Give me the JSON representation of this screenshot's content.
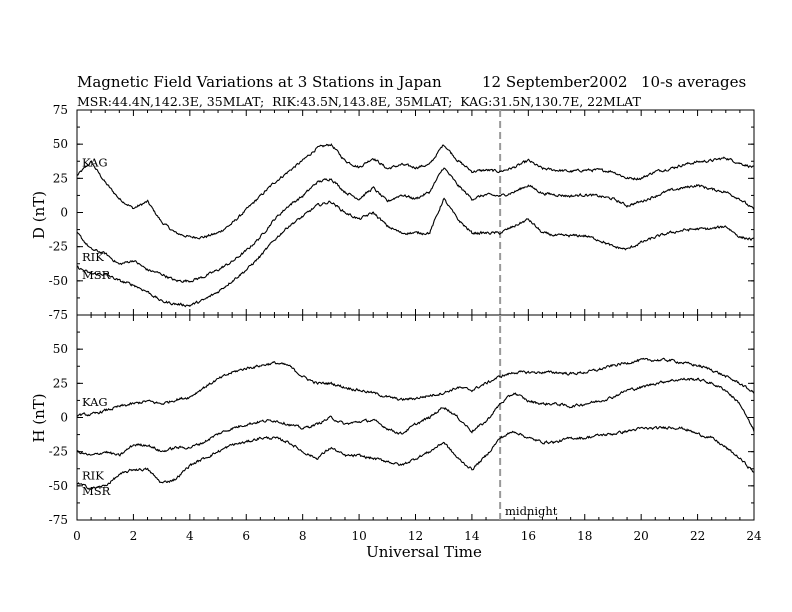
{
  "figure": {
    "title": "Magnetic Field Variations at 3 Stations in Japan",
    "date": "12 September2002",
    "averaging": "10-s averages",
    "stations_line": "MSR:44.4N,142.3E, 35MLAT;  RIK:43.5N,143.8E, 35MLAT;  KAG:31.5N,130.7E, 22MLAT",
    "annotation": "midnight"
  },
  "chart_data": [
    {
      "type": "line",
      "ylabel": "D (nT)",
      "xlabel": "",
      "xlim": [
        0,
        24
      ],
      "ylim": [
        -75,
        75
      ],
      "yticks": [
        -75,
        -50,
        -25,
        0,
        25,
        50,
        75
      ],
      "grid": false,
      "marker_line_x": 15,
      "series": [
        {
          "name": "KAG",
          "x": [
            0,
            0.5,
            1,
            1.5,
            2,
            2.5,
            3,
            3.5,
            4,
            4.5,
            5,
            5.5,
            6,
            6.5,
            7,
            7.5,
            8,
            8.5,
            9,
            9.5,
            10,
            10.5,
            11,
            11.5,
            12,
            12.5,
            13,
            13.5,
            14,
            14.5,
            15,
            15.5,
            16,
            16.5,
            17,
            17.5,
            18,
            18.5,
            19,
            19.5,
            20,
            20.5,
            21,
            21.5,
            22,
            22.5,
            23,
            23.5,
            24
          ],
          "y": [
            27,
            37,
            22,
            10,
            3,
            8,
            -7,
            -15,
            -18,
            -18,
            -15,
            -8,
            2,
            12,
            22,
            30,
            38,
            47,
            50,
            38,
            33,
            40,
            32,
            35,
            33,
            35,
            50,
            38,
            30,
            31,
            30,
            33,
            38,
            32,
            31,
            30,
            31,
            31,
            30,
            25,
            25,
            30,
            32,
            35,
            37,
            38,
            40,
            36,
            33
          ]
        },
        {
          "name": "RIK",
          "x": [
            0,
            0.5,
            1,
            1.5,
            2,
            2.5,
            3,
            3.5,
            4,
            4.5,
            5,
            5.5,
            6,
            6.5,
            7,
            7.5,
            8,
            8.5,
            9,
            9.5,
            10,
            10.5,
            11,
            11.5,
            12,
            12.5,
            13,
            13.5,
            14,
            14.5,
            15,
            15.5,
            16,
            16.5,
            17,
            17.5,
            18,
            18.5,
            19,
            19.5,
            20,
            20.5,
            21,
            21.5,
            22,
            22.5,
            23,
            23.5,
            24
          ],
          "y": [
            -15,
            -27,
            -30,
            -38,
            -35,
            -42,
            -45,
            -50,
            -50,
            -47,
            -42,
            -36,
            -28,
            -18,
            -5,
            5,
            12,
            22,
            25,
            15,
            10,
            18,
            8,
            13,
            10,
            15,
            33,
            20,
            10,
            13,
            12,
            15,
            20,
            14,
            13,
            12,
            13,
            12,
            10,
            5,
            8,
            12,
            16,
            18,
            20,
            17,
            15,
            10,
            2
          ]
        },
        {
          "name": "MSR",
          "x": [
            0,
            0.5,
            1,
            1.5,
            2,
            2.5,
            3,
            3.5,
            4,
            4.5,
            5,
            5.5,
            6,
            6.5,
            7,
            7.5,
            8,
            8.5,
            9,
            9.5,
            10,
            10.5,
            11,
            11.5,
            12,
            12.5,
            13,
            13.5,
            14,
            14.5,
            15,
            15.5,
            16,
            16.5,
            17,
            17.5,
            18,
            18.5,
            19,
            19.5,
            20,
            20.5,
            21,
            21.5,
            22,
            22.5,
            23,
            23.5,
            24
          ],
          "y": [
            -40,
            -45,
            -45,
            -50,
            -53,
            -58,
            -65,
            -67,
            -68,
            -64,
            -58,
            -50,
            -42,
            -32,
            -20,
            -10,
            -3,
            5,
            8,
            0,
            -5,
            0,
            -10,
            -15,
            -15,
            -15,
            10,
            -5,
            -15,
            -15,
            -15,
            -10,
            -5,
            -15,
            -17,
            -17,
            -17,
            -20,
            -25,
            -27,
            -22,
            -18,
            -15,
            -13,
            -12,
            -12,
            -10,
            -18,
            -20
          ]
        }
      ]
    },
    {
      "type": "line",
      "ylabel": "H (nT)",
      "xlabel": "Universal Time",
      "xlim": [
        0,
        24
      ],
      "ylim": [
        -75,
        75
      ],
      "yticks": [
        -75,
        -50,
        -25,
        0,
        25,
        50
      ],
      "xticks": [
        0,
        2,
        4,
        6,
        8,
        10,
        12,
        14,
        16,
        18,
        20,
        22,
        24
      ],
      "grid": false,
      "marker_line_x": 15,
      "series": [
        {
          "name": "KAG",
          "x": [
            0,
            0.5,
            1,
            1.5,
            2,
            2.5,
            3,
            3.5,
            4,
            4.5,
            5,
            5.5,
            6,
            6.5,
            7,
            7.5,
            8,
            8.5,
            9,
            9.5,
            10,
            10.5,
            11,
            11.5,
            12,
            12.5,
            13,
            13.5,
            14,
            14.5,
            15,
            15.5,
            16,
            16.5,
            17,
            17.5,
            18,
            18.5,
            19,
            19.5,
            20,
            20.5,
            21,
            21.5,
            22,
            22.5,
            23,
            23.5,
            24
          ],
          "y": [
            2,
            2,
            5,
            8,
            10,
            12,
            10,
            13,
            15,
            22,
            28,
            33,
            36,
            38,
            40,
            38,
            30,
            25,
            25,
            22,
            20,
            18,
            15,
            13,
            14,
            16,
            18,
            22,
            20,
            25,
            30,
            33,
            33,
            33,
            33,
            32,
            33,
            35,
            38,
            40,
            42,
            42,
            42,
            40,
            38,
            35,
            30,
            25,
            18
          ]
        },
        {
          "name": "RIK",
          "x": [
            0,
            0.5,
            1,
            1.5,
            2,
            2.5,
            3,
            3.5,
            4,
            4.5,
            5,
            5.5,
            6,
            6.5,
            7,
            7.5,
            8,
            8.5,
            9,
            9.5,
            10,
            10.5,
            11,
            11.5,
            12,
            12.5,
            13,
            13.5,
            14,
            14.5,
            15,
            15.5,
            16,
            16.5,
            17,
            17.5,
            18,
            18.5,
            19,
            19.5,
            20,
            20.5,
            21,
            21.5,
            22,
            22.5,
            23,
            23.5,
            24
          ],
          "y": [
            -25,
            -28,
            -25,
            -28,
            -20,
            -20,
            -25,
            -22,
            -22,
            -18,
            -12,
            -8,
            -5,
            -3,
            -2,
            -5,
            -8,
            -5,
            0,
            -5,
            -3,
            -2,
            -8,
            -12,
            -5,
            0,
            8,
            0,
            -10,
            -3,
            10,
            18,
            12,
            10,
            10,
            8,
            10,
            12,
            15,
            20,
            22,
            25,
            27,
            28,
            28,
            25,
            20,
            10,
            -10
          ]
        },
        {
          "name": "MSR",
          "x": [
            0,
            0.5,
            1,
            1.5,
            2,
            2.5,
            3,
            3.5,
            4,
            4.5,
            5,
            5.5,
            6,
            6.5,
            7,
            7.5,
            8,
            8.5,
            9,
            9.5,
            10,
            10.5,
            11,
            11.5,
            12,
            12.5,
            13,
            13.5,
            14,
            14.5,
            15,
            15.5,
            16,
            16.5,
            17,
            17.5,
            18,
            18.5,
            19,
            19.5,
            20,
            20.5,
            21,
            21.5,
            22,
            22.5,
            23,
            23.5,
            24
          ],
          "y": [
            -48,
            -52,
            -50,
            -42,
            -38,
            -38,
            -48,
            -45,
            -35,
            -30,
            -25,
            -20,
            -18,
            -15,
            -15,
            -18,
            -25,
            -30,
            -22,
            -28,
            -28,
            -30,
            -32,
            -35,
            -30,
            -25,
            -18,
            -30,
            -38,
            -28,
            -15,
            -10,
            -15,
            -18,
            -18,
            -15,
            -15,
            -13,
            -12,
            -10,
            -8,
            -8,
            -7,
            -8,
            -12,
            -15,
            -22,
            -30,
            -40
          ]
        }
      ]
    }
  ]
}
